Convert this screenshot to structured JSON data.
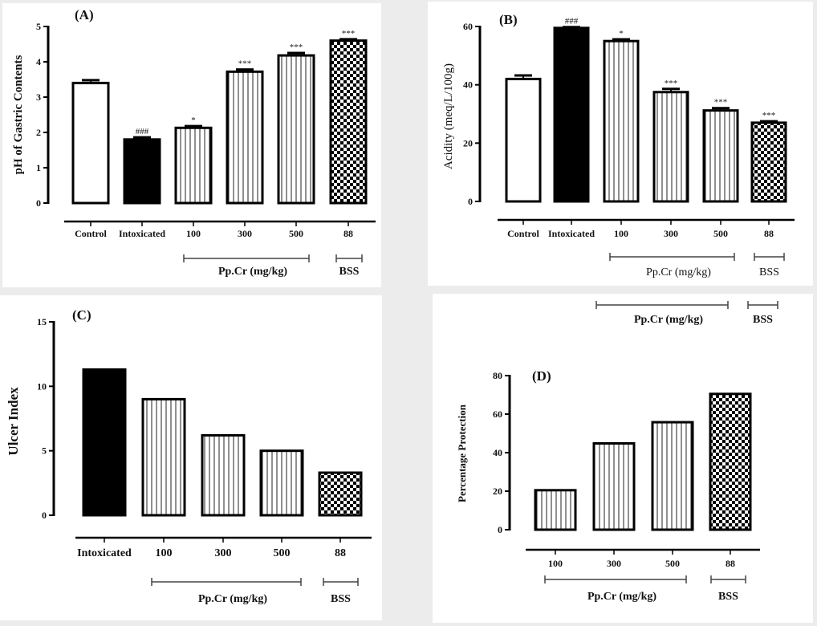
{
  "chart_data": [
    {
      "type": "bar",
      "panel_label": "(A)",
      "ylabel": "pH  of Gastric Contents",
      "ylim": [
        0,
        5
      ],
      "yticks": [
        0,
        1,
        2,
        3,
        4,
        5
      ],
      "categories": [
        "Control",
        "Intoxicated",
        "100",
        "300",
        "500",
        "88"
      ],
      "values": [
        3.4,
        1.8,
        2.13,
        3.72,
        4.18,
        4.6
      ],
      "errors": [
        0.08,
        0.06,
        0.05,
        0.06,
        0.07,
        0.04
      ],
      "significance": [
        "",
        "###",
        "*",
        "***",
        "***",
        "***"
      ],
      "fills": [
        "white",
        "black",
        "stripes",
        "stripes",
        "stripes",
        "checker"
      ],
      "groups": [
        {
          "label": "Pp.Cr (mg/kg)"
        },
        {
          "label": "BSS"
        }
      ]
    },
    {
      "type": "bar",
      "panel_label": "(B)",
      "ylabel": "Acidity (meq/L/100g)",
      "ylim": [
        0,
        60
      ],
      "yticks": [
        0,
        20,
        40,
        60
      ],
      "categories": [
        "Control",
        "Intoxicated",
        "100",
        "300",
        "500",
        "88"
      ],
      "values": [
        42,
        59.5,
        55,
        37.5,
        31.2,
        27
      ],
      "errors": [
        1.2,
        0.3,
        0.6,
        1.1,
        0.8,
        0.5
      ],
      "significance": [
        "",
        "###",
        "*",
        "***",
        "***",
        "***"
      ],
      "fills": [
        "white",
        "black",
        "stripes",
        "stripes",
        "stripes",
        "checker"
      ],
      "groups": [
        {
          "label": "Pp.Cr  (mg/kg)"
        },
        {
          "label": "BSS"
        }
      ]
    },
    {
      "type": "bar",
      "panel_label": "(C)",
      "ylabel": "Ulcer Index",
      "ylim": [
        0,
        15
      ],
      "yticks": [
        0,
        5,
        10,
        15
      ],
      "categories": [
        "Intoxicated",
        "100",
        "300",
        "500",
        "88"
      ],
      "values": [
        11.3,
        9.0,
        6.2,
        5.0,
        3.3
      ],
      "fills": [
        "black",
        "stripes",
        "stripes",
        "stripes",
        "checker"
      ],
      "groups": [
        {
          "label": "Pp.Cr (mg/kg)"
        },
        {
          "label": "BSS"
        }
      ]
    },
    {
      "type": "bar",
      "panel_label": "(D)",
      "ylabel": "Percentage Protection",
      "ylim": [
        0,
        80
      ],
      "yticks": [
        0,
        20,
        40,
        60,
        80
      ],
      "categories": [
        "100",
        "300",
        "500",
        "88"
      ],
      "values": [
        20.5,
        44.8,
        55.8,
        70.5
      ],
      "fills": [
        "stripes",
        "stripes",
        "stripes",
        "checker"
      ],
      "groups": [
        {
          "label": "Pp.Cr (mg/kg)"
        },
        {
          "label": "BSS"
        }
      ],
      "extra_groups": [
        {
          "label": "Pp.Cr (mg/kg)"
        },
        {
          "label": "BSS"
        }
      ]
    }
  ]
}
